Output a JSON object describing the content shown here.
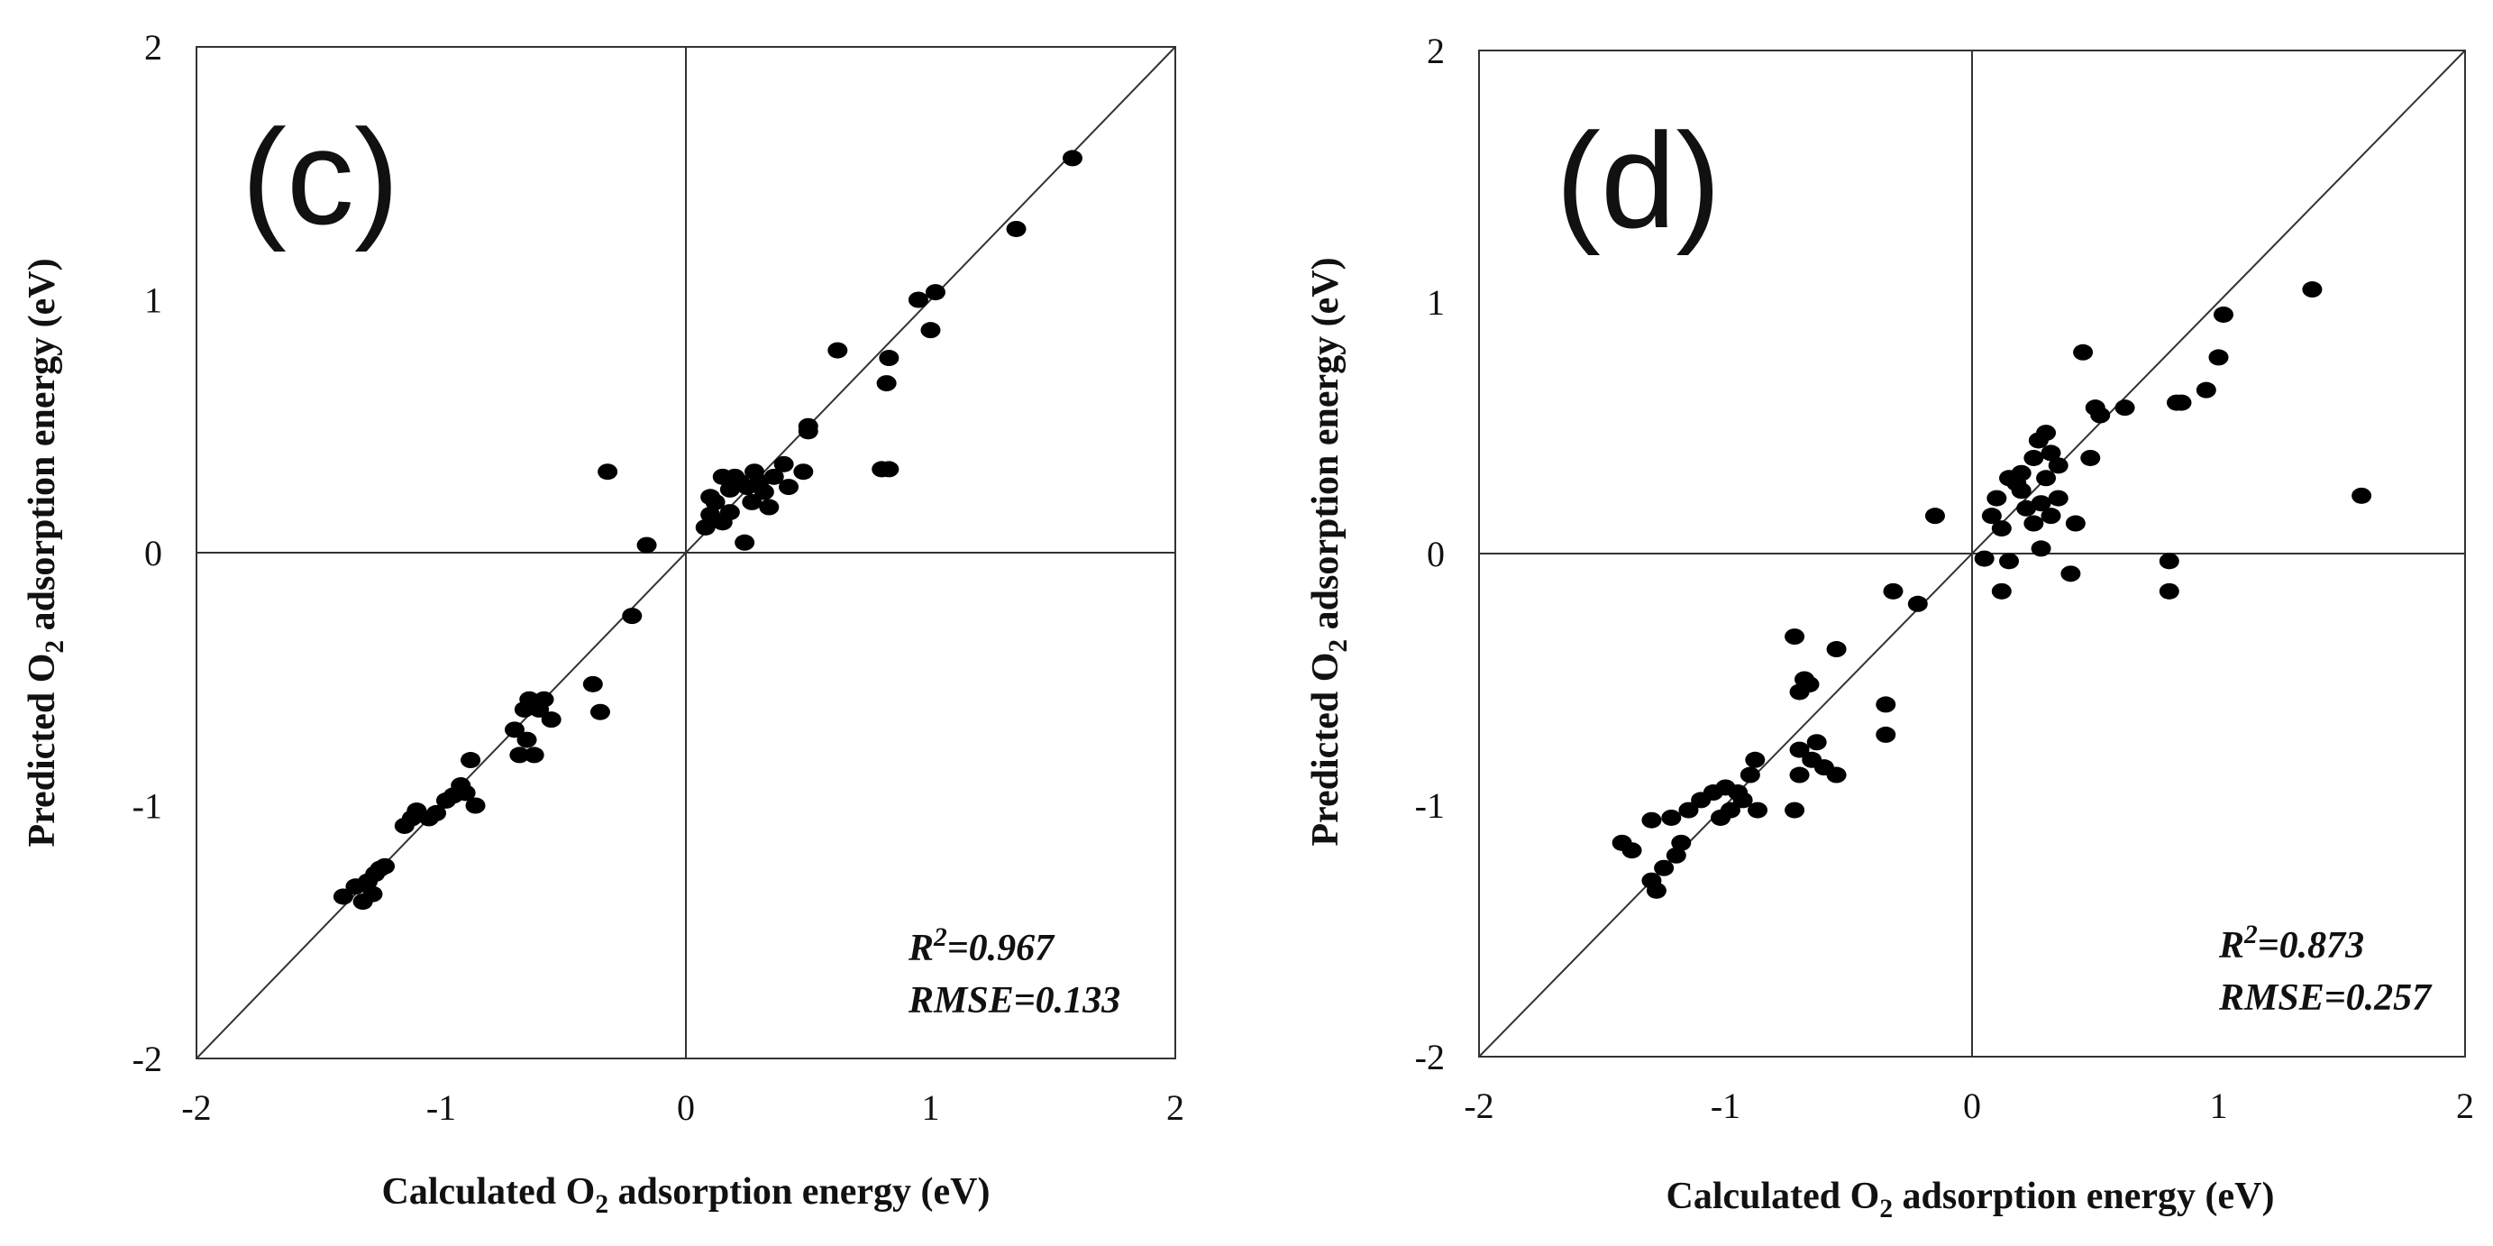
{
  "chart_data": [
    {
      "type": "scatter",
      "panel_label": "(c)",
      "xlabel": "Calculated O₂ adsorption energy (eV)",
      "ylabel": "Predicted O₂ adsorption energy (eV)",
      "xlim": [
        -2,
        2
      ],
      "ylim": [
        -2,
        2
      ],
      "xticks": [
        "-2",
        "-1",
        "0",
        "1",
        "2"
      ],
      "yticks": [
        "-2",
        "-1",
        "0",
        "1",
        "2"
      ],
      "grid": false,
      "reference_line": "y = x",
      "stats": {
        "r2_label": "R²=0.967",
        "rmse_label": "RMSE=0.133"
      },
      "points": [
        [
          -1.4,
          -1.36
        ],
        [
          -1.35,
          -1.32
        ],
        [
          -1.32,
          -1.38
        ],
        [
          -1.3,
          -1.3
        ],
        [
          -1.28,
          -1.35
        ],
        [
          -1.27,
          -1.27
        ],
        [
          -1.25,
          -1.25
        ],
        [
          -1.23,
          -1.24
        ],
        [
          -1.15,
          -1.08
        ],
        [
          -1.12,
          -1.05
        ],
        [
          -1.1,
          -1.02
        ],
        [
          -1.05,
          -1.05
        ],
        [
          -1.02,
          -1.03
        ],
        [
          -0.98,
          -0.98
        ],
        [
          -0.95,
          -0.96
        ],
        [
          -0.92,
          -0.92
        ],
        [
          -0.9,
          -0.95
        ],
        [
          -0.88,
          -0.82
        ],
        [
          -0.86,
          -1.0
        ],
        [
          -0.7,
          -0.7
        ],
        [
          -0.68,
          -0.8
        ],
        [
          -0.66,
          -0.62
        ],
        [
          -0.65,
          -0.74
        ],
        [
          -0.64,
          -0.58
        ],
        [
          -0.62,
          -0.8
        ],
        [
          -0.6,
          -0.62
        ],
        [
          -0.58,
          -0.58
        ],
        [
          -0.55,
          -0.66
        ],
        [
          -0.38,
          -0.52
        ],
        [
          -0.35,
          -0.63
        ],
        [
          -0.32,
          0.32
        ],
        [
          -0.22,
          -0.25
        ],
        [
          -0.16,
          0.03
        ],
        [
          0.08,
          0.1
        ],
        [
          0.1,
          0.15
        ],
        [
          0.1,
          0.22
        ],
        [
          0.12,
          0.2
        ],
        [
          0.15,
          0.3
        ],
        [
          0.15,
          0.12
        ],
        [
          0.18,
          0.16
        ],
        [
          0.18,
          0.25
        ],
        [
          0.2,
          0.3
        ],
        [
          0.22,
          0.28
        ],
        [
          0.24,
          0.04
        ],
        [
          0.25,
          0.26
        ],
        [
          0.27,
          0.2
        ],
        [
          0.28,
          0.32
        ],
        [
          0.3,
          0.28
        ],
        [
          0.32,
          0.24
        ],
        [
          0.34,
          0.18
        ],
        [
          0.36,
          0.3
        ],
        [
          0.4,
          0.35
        ],
        [
          0.42,
          0.26
        ],
        [
          0.48,
          0.32
        ],
        [
          0.5,
          0.5
        ],
        [
          0.5,
          0.48
        ],
        [
          0.62,
          0.8
        ],
        [
          0.8,
          0.33
        ],
        [
          0.82,
          0.67
        ],
        [
          0.83,
          0.33
        ],
        [
          0.83,
          0.77
        ],
        [
          0.95,
          1.0
        ],
        [
          1.0,
          0.88
        ],
        [
          1.02,
          1.03
        ],
        [
          1.35,
          1.28
        ],
        [
          1.58,
          1.56
        ]
      ]
    },
    {
      "type": "scatter",
      "panel_label": "(d)",
      "xlabel": "Calculated O₂ adsorption energy (eV)",
      "ylabel": "Predicted O₂ adsorption energy (eV)",
      "xlim": [
        -2,
        2
      ],
      "ylim": [
        -2,
        2
      ],
      "xticks": [
        "-2",
        "-1",
        "0",
        "1",
        "2"
      ],
      "yticks": [
        "-2",
        "-1",
        "0",
        "1",
        "2"
      ],
      "grid": false,
      "reference_line": "y = x",
      "stats": {
        "r2_label": "R²=0.873",
        "rmse_label": "RMSE=0.257"
      },
      "points": [
        [
          -1.42,
          -1.15
        ],
        [
          -1.38,
          -1.18
        ],
        [
          -1.3,
          -1.06
        ],
        [
          -1.3,
          -1.3
        ],
        [
          -1.28,
          -1.34
        ],
        [
          -1.25,
          -1.25
        ],
        [
          -1.22,
          -1.05
        ],
        [
          -1.2,
          -1.2
        ],
        [
          -1.18,
          -1.15
        ],
        [
          -1.15,
          -1.02
        ],
        [
          -1.1,
          -0.98
        ],
        [
          -1.05,
          -0.95
        ],
        [
          -1.02,
          -1.05
        ],
        [
          -1.0,
          -0.93
        ],
        [
          -0.98,
          -1.02
        ],
        [
          -0.95,
          -0.95
        ],
        [
          -0.93,
          -0.98
        ],
        [
          -0.9,
          -0.88
        ],
        [
          -0.88,
          -0.82
        ],
        [
          -0.87,
          -1.02
        ],
        [
          -0.72,
          -0.33
        ],
        [
          -0.72,
          -1.02
        ],
        [
          -0.7,
          -0.55
        ],
        [
          -0.7,
          -0.78
        ],
        [
          -0.7,
          -0.88
        ],
        [
          -0.68,
          -0.5
        ],
        [
          -0.66,
          -0.52
        ],
        [
          -0.65,
          -0.82
        ],
        [
          -0.63,
          -0.75
        ],
        [
          -0.6,
          -0.85
        ],
        [
          -0.55,
          -0.38
        ],
        [
          -0.55,
          -0.88
        ],
        [
          -0.35,
          -0.6
        ],
        [
          -0.35,
          -0.72
        ],
        [
          -0.32,
          -0.15
        ],
        [
          -0.22,
          -0.2
        ],
        [
          -0.15,
          0.15
        ],
        [
          0.05,
          -0.02
        ],
        [
          0.08,
          0.15
        ],
        [
          0.1,
          0.22
        ],
        [
          0.12,
          0.1
        ],
        [
          0.12,
          -0.15
        ],
        [
          0.15,
          -0.03
        ],
        [
          0.15,
          0.3
        ],
        [
          0.18,
          0.28
        ],
        [
          0.2,
          0.25
        ],
        [
          0.2,
          0.32
        ],
        [
          0.22,
          0.18
        ],
        [
          0.25,
          0.38
        ],
        [
          0.25,
          0.12
        ],
        [
          0.27,
          0.45
        ],
        [
          0.28,
          0.2
        ],
        [
          0.28,
          0.02
        ],
        [
          0.3,
          0.3
        ],
        [
          0.3,
          0.48
        ],
        [
          0.32,
          0.15
        ],
        [
          0.32,
          0.4
        ],
        [
          0.35,
          0.35
        ],
        [
          0.35,
          0.22
        ],
        [
          0.4,
          -0.08
        ],
        [
          0.42,
          0.12
        ],
        [
          0.45,
          0.8
        ],
        [
          0.48,
          0.38
        ],
        [
          0.5,
          0.58
        ],
        [
          0.52,
          0.55
        ],
        [
          0.62,
          0.58
        ],
        [
          0.8,
          -0.03
        ],
        [
          0.8,
          -0.15
        ],
        [
          0.83,
          0.6
        ],
        [
          0.85,
          0.6
        ],
        [
          0.95,
          0.65
        ],
        [
          1.0,
          0.78
        ],
        [
          1.02,
          0.95
        ],
        [
          1.38,
          1.05
        ],
        [
          1.58,
          0.23
        ]
      ]
    }
  ]
}
